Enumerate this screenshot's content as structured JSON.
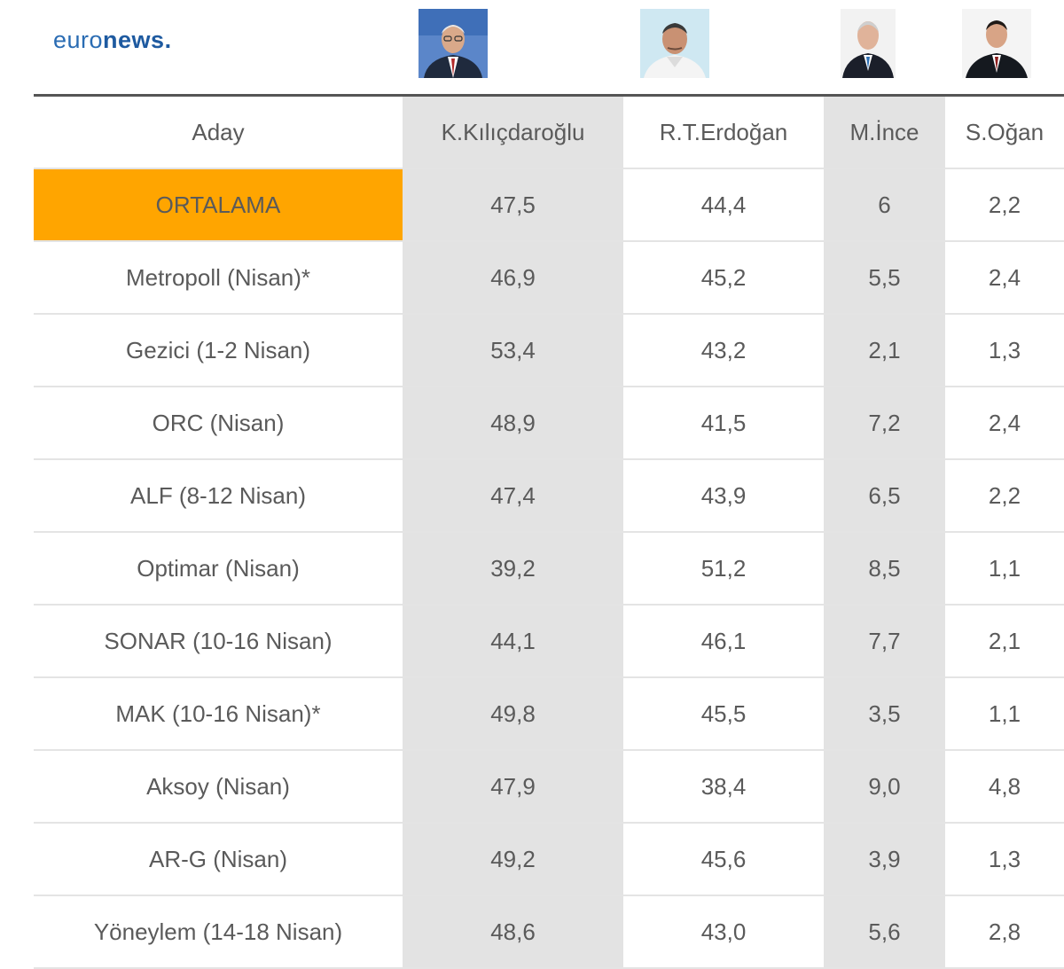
{
  "brand": {
    "logo_light": "euro",
    "logo_bold": "news."
  },
  "colors": {
    "highlight": "#ffa500",
    "shaded_column": "#e3e3e3",
    "logo": "#2a6cb3"
  },
  "chart_data": {
    "type": "table",
    "columns": [
      "Aday",
      "K.Kılıçdaroğlu",
      "R.T.Erdoğan",
      "M.İnce",
      "S.Oğan"
    ],
    "rows": [
      {
        "label": "ORTALAMA",
        "values": [
          "47,5",
          "44,4",
          "6",
          "2,2"
        ]
      },
      {
        "label": "Metropoll (Nisan)*",
        "values": [
          "46,9",
          "45,2",
          "5,5",
          "2,4"
        ]
      },
      {
        "label": "Gezici (1-2 Nisan)",
        "values": [
          "53,4",
          "43,2",
          "2,1",
          "1,3"
        ]
      },
      {
        "label": "ORC (Nisan)",
        "values": [
          "48,9",
          "41,5",
          "7,2",
          "2,4"
        ]
      },
      {
        "label": "ALF (8-12 Nisan)",
        "values": [
          "47,4",
          "43,9",
          "6,5",
          "2,2"
        ]
      },
      {
        "label": "Optimar (Nisan)",
        "values": [
          "39,2",
          "51,2",
          "8,5",
          "1,1"
        ]
      },
      {
        "label": "SONAR (10-16 Nisan)",
        "values": [
          "44,1",
          "46,1",
          "7,7",
          "2,1"
        ]
      },
      {
        "label": "MAK (10-16 Nisan)*",
        "values": [
          "49,8",
          "45,5",
          "3,5",
          "1,1"
        ]
      },
      {
        "label": "Aksoy (Nisan)",
        "values": [
          "47,9",
          "38,4",
          "9,0",
          "4,8"
        ]
      },
      {
        "label": "AR-G (Nisan)",
        "values": [
          "49,2",
          "45,6",
          "3,9",
          "1,3"
        ]
      },
      {
        "label": "Yöneylem (14-18 Nisan)",
        "values": [
          "48,6",
          "43,0",
          "5,6",
          "2,8"
        ]
      }
    ]
  }
}
